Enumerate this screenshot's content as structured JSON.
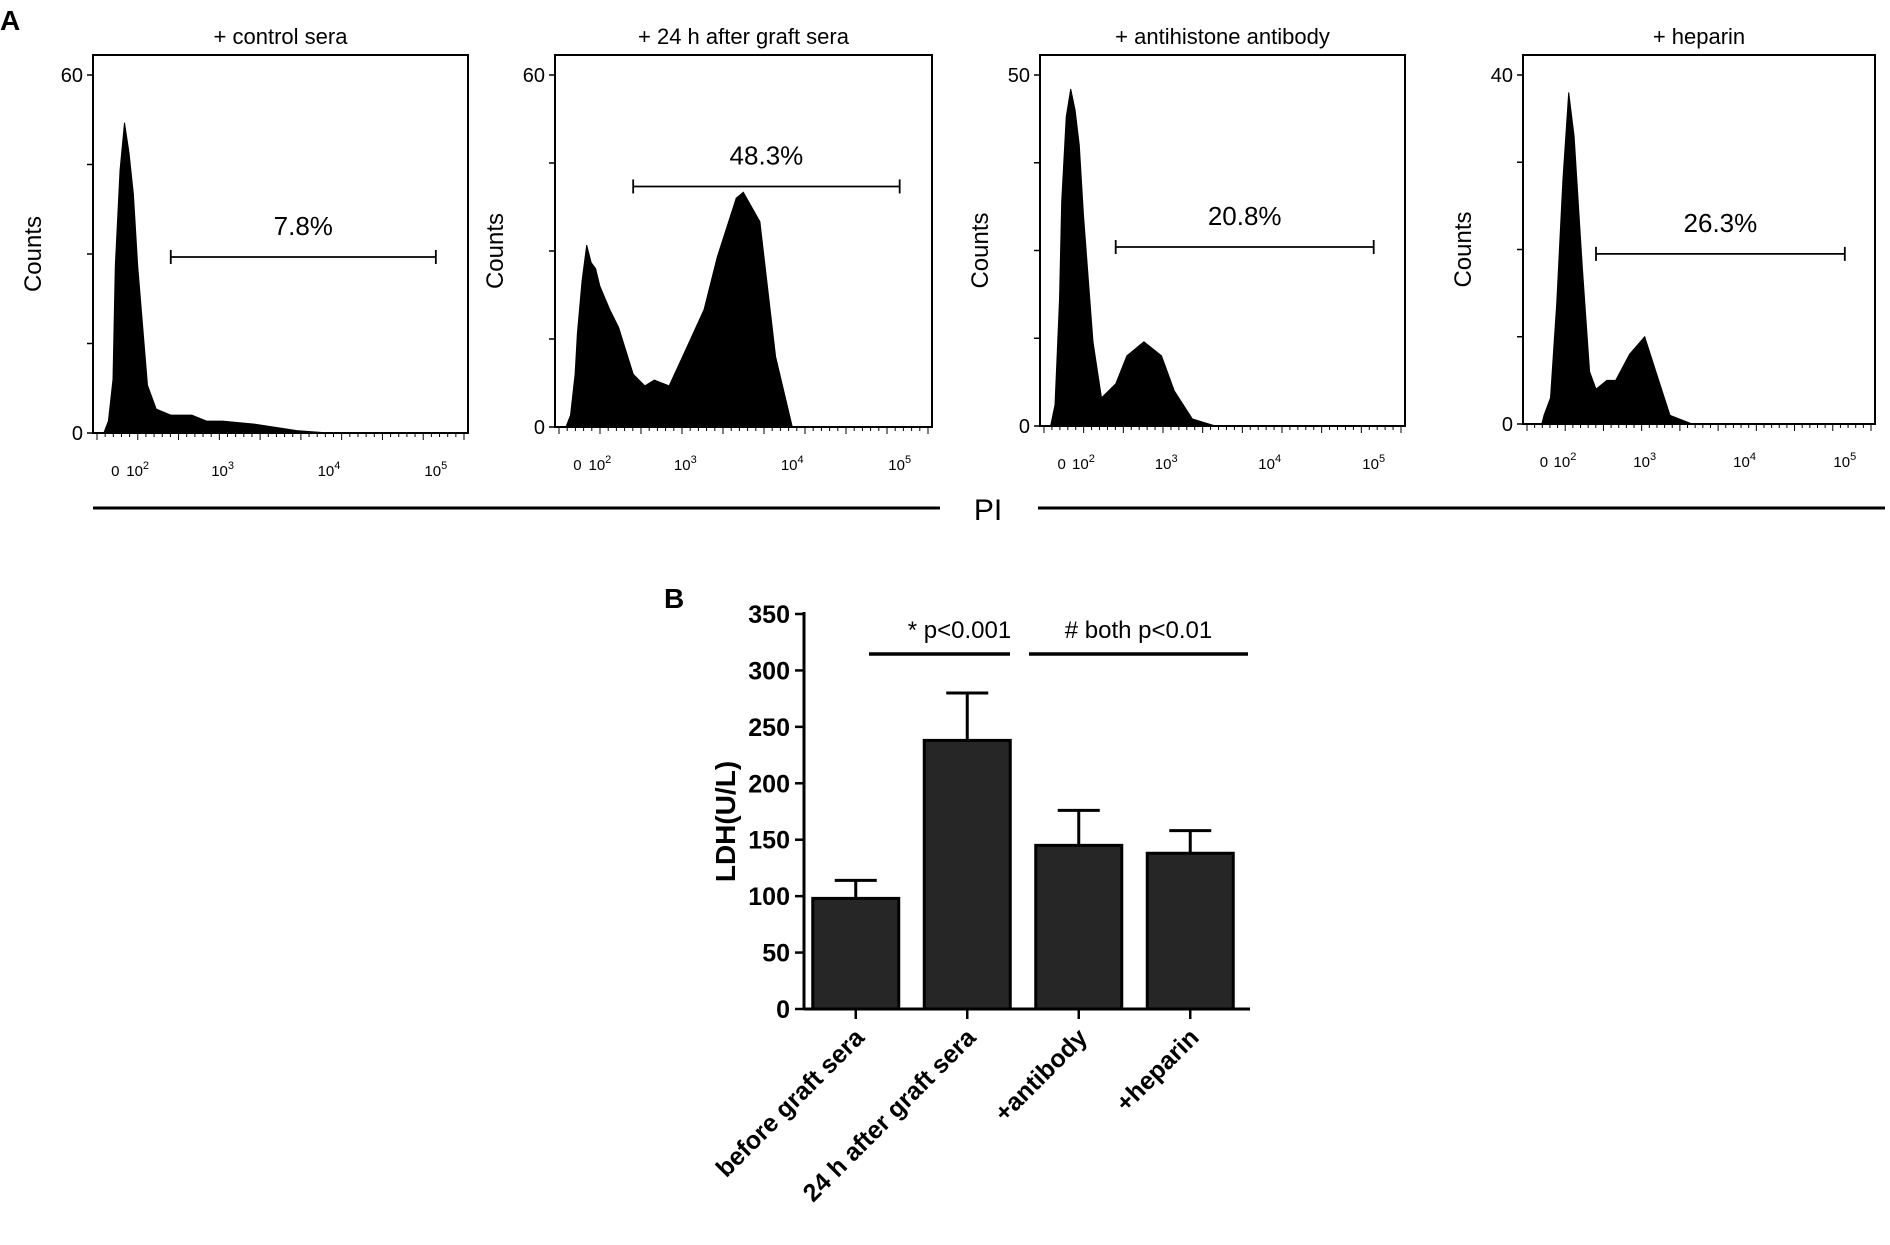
{
  "panel_a": {
    "letter": "A",
    "x_axis_label": "PI",
    "y_axis_label": "Counts",
    "x_tick_labels": [
      "0",
      "10^2",
      "10^3",
      "10^4",
      "10^5"
    ]
  },
  "panel_b": {
    "letter": "B"
  },
  "chart_data": [
    {
      "type": "area",
      "title": "+ control sera",
      "ylabel": "Counts",
      "ylim": [
        0,
        60
      ],
      "y_ticks": [
        0,
        60
      ],
      "gate": {
        "label": "7.8%",
        "value": 7.8,
        "x_range": [
          300,
          100000
        ],
        "y": 29.5
      },
      "x": [
        -50,
        -30,
        -10,
        0,
        20,
        40,
        60,
        80,
        100,
        150,
        200,
        300,
        500,
        700,
        1000,
        2000,
        3000,
        5000,
        10000,
        100000
      ],
      "y": [
        0,
        2,
        9,
        28,
        44,
        52,
        47,
        40,
        28,
        8,
        4,
        3,
        3,
        2,
        2,
        1.5,
        1,
        0.4,
        0,
        0
      ]
    },
    {
      "type": "area",
      "title": "+ 24 h after graft sera",
      "ylabel": "Counts",
      "ylim": [
        0,
        60
      ],
      "y_ticks": [
        0,
        60
      ],
      "gate": {
        "label": "48.3%",
        "value": 48.3,
        "x_range": [
          300,
          100000
        ],
        "y": 41
      },
      "x": [
        -50,
        -30,
        -10,
        0,
        20,
        40,
        60,
        80,
        100,
        150,
        200,
        300,
        400,
        500,
        700,
        1000,
        1500,
        2000,
        3000,
        3500,
        5000,
        7000,
        10000,
        100000
      ],
      "y": [
        0,
        2,
        9,
        16,
        25,
        31,
        28,
        27,
        24,
        20,
        17,
        9,
        7,
        8,
        7,
        13,
        20,
        29,
        39,
        40,
        35,
        12,
        0,
        0
      ]
    },
    {
      "type": "area",
      "title": "+ antihistone antibody",
      "ylabel": "Counts",
      "ylim": [
        0,
        50
      ],
      "y_ticks": [
        0,
        50
      ],
      "gate": {
        "label": "20.8%",
        "value": 20.8,
        "x_range": [
          300,
          100000
        ],
        "y": 25.5
      },
      "x": [
        -50,
        -30,
        -10,
        0,
        20,
        40,
        60,
        80,
        100,
        150,
        200,
        300,
        400,
        600,
        900,
        1200,
        1800,
        3000,
        100000
      ],
      "y": [
        0,
        3,
        18,
        32,
        44,
        48,
        45,
        40,
        30,
        12,
        4,
        6,
        10,
        12,
        10,
        5,
        1,
        0,
        0
      ]
    },
    {
      "type": "area",
      "title": "+ heparin",
      "ylabel": "Counts",
      "ylim": [
        0,
        40
      ],
      "y_ticks": [
        0,
        40
      ],
      "gate": {
        "label": "26.3%",
        "value": 26.3,
        "x_range": [
          300,
          100000
        ],
        "y": 19.5
      },
      "x": [
        -50,
        -10,
        0,
        30,
        60,
        90,
        120,
        150,
        200,
        250,
        300,
        400,
        500,
        700,
        1000,
        1300,
        1800,
        3000,
        100000
      ],
      "y": [
        0,
        0,
        1,
        3,
        14,
        28,
        38,
        33,
        18,
        6,
        4,
        5,
        5,
        8,
        10,
        6,
        1,
        0,
        0
      ]
    },
    {
      "type": "bar",
      "categories": [
        "before graft sera",
        "24 h after graft sera",
        "+antibody",
        "+heparin"
      ],
      "values": [
        98,
        238,
        145,
        138
      ],
      "errors": [
        16,
        42,
        31,
        20
      ],
      "ylabel": "LDH(U/L)",
      "ylim": [
        0,
        350
      ],
      "y_ticks": [
        0,
        50,
        100,
        150,
        200,
        250,
        300,
        350
      ],
      "annotations": [
        {
          "text": "* p<0.001",
          "from": 0,
          "to": 1
        },
        {
          "text": "# both p<0.01",
          "from": 1,
          "to": 3
        }
      ],
      "bar_color": "#262626"
    }
  ]
}
